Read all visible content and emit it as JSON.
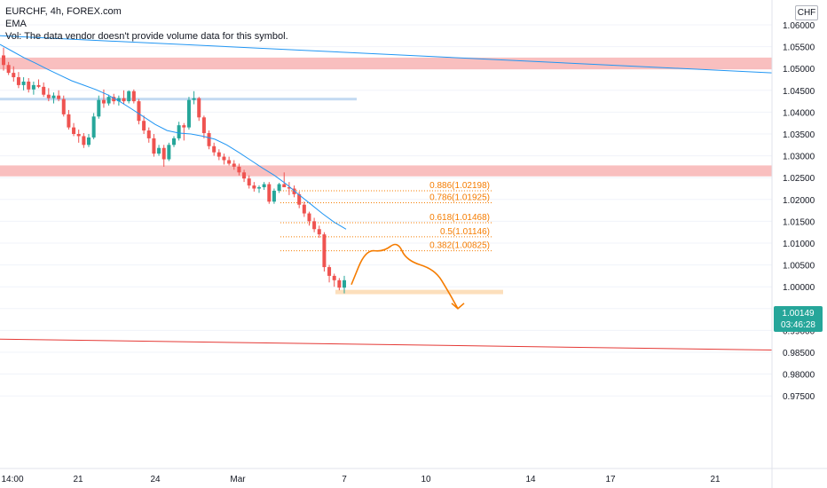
{
  "legend": {
    "symbol_line": "EURCHF, 4h, FOREX.com",
    "ema_label": "EMA",
    "vol_note": "Vol: The data vendor doesn't provide volume data for this symbol."
  },
  "currency_badge": "CHF",
  "last_price": {
    "value": "1.00149",
    "countdown": "03:46:28"
  },
  "colors": {
    "up": "#26a69a",
    "down": "#ef5350",
    "ema": "#2196f3",
    "zone_red": "#f8b4b4",
    "zone_blue": "#b8d3f0",
    "zone_orange": "#fcd9b0",
    "fib": "#f57c00",
    "trend_red": "#e53935",
    "trend_blue": "#2196f3"
  },
  "chart_data": {
    "type": "candlestick",
    "symbol": "EURCHF",
    "timeframe": "4h",
    "ylim": [
      0.9725,
      1.0625
    ],
    "y_ticks": [
      "1.06000",
      "1.05500",
      "1.05000",
      "1.04500",
      "1.04000",
      "1.03500",
      "1.03000",
      "1.02500",
      "1.02000",
      "1.01500",
      "1.01000",
      "1.00500",
      "1.00000",
      "0.99500",
      "0.99000",
      "0.98500",
      "0.98000",
      "0.97500"
    ],
    "x_ticks": [
      "14:00",
      "21",
      "24",
      "Mar",
      "7",
      "10",
      "14",
      "17",
      "21"
    ],
    "candles": [
      [
        1.053,
        1.0548,
        1.0495,
        1.0508
      ],
      [
        1.0508,
        1.0515,
        1.0485,
        1.049
      ],
      [
        1.049,
        1.0505,
        1.047,
        1.048
      ],
      [
        1.048,
        1.0492,
        1.0455,
        1.0462
      ],
      [
        1.0462,
        1.048,
        1.045,
        1.047
      ],
      [
        1.047,
        1.0478,
        1.0445,
        1.0452
      ],
      [
        1.0452,
        1.047,
        1.044,
        1.0462
      ],
      [
        1.0462,
        1.0475,
        1.0455,
        1.0458
      ],
      [
        1.0458,
        1.0468,
        1.0435,
        1.044
      ],
      [
        1.044,
        1.0455,
        1.0425,
        1.0432
      ],
      [
        1.0432,
        1.0445,
        1.042,
        1.0438
      ],
      [
        1.0438,
        1.045,
        1.0425,
        1.043
      ],
      [
        1.043,
        1.0438,
        1.039,
        1.0395
      ],
      [
        1.0395,
        1.0405,
        1.036,
        1.0365
      ],
      [
        1.0365,
        1.0375,
        1.0345,
        1.035
      ],
      [
        1.035,
        1.036,
        1.033,
        1.0345
      ],
      [
        1.0345,
        1.0352,
        1.0318,
        1.0325
      ],
      [
        1.0325,
        1.035,
        1.032,
        1.0342
      ],
      [
        1.0342,
        1.0398,
        1.0338,
        1.039
      ],
      [
        1.039,
        1.0438,
        1.0385,
        1.0428
      ],
      [
        1.0428,
        1.0452,
        1.041,
        1.042
      ],
      [
        1.042,
        1.044,
        1.0415,
        1.0435
      ],
      [
        1.0435,
        1.0442,
        1.0418,
        1.0425
      ],
      [
        1.0425,
        1.0438,
        1.0415,
        1.0432
      ],
      [
        1.0432,
        1.045,
        1.0418,
        1.0425
      ],
      [
        1.0425,
        1.045,
        1.042,
        1.0448
      ],
      [
        1.0448,
        1.0452,
        1.042,
        1.0425
      ],
      [
        1.0425,
        1.043,
        1.0372,
        1.038
      ],
      [
        1.038,
        1.0392,
        1.035,
        1.0358
      ],
      [
        1.0358,
        1.0365,
        1.033,
        1.034
      ],
      [
        1.034,
        1.035,
        1.0298,
        1.0305
      ],
      [
        1.0305,
        1.0325,
        1.03,
        1.0318
      ],
      [
        1.0318,
        1.0325,
        1.0275,
        1.0292
      ],
      [
        1.0292,
        1.033,
        1.0288,
        1.0325
      ],
      [
        1.0325,
        1.0345,
        1.032,
        1.034
      ],
      [
        1.034,
        1.0378,
        1.0335,
        1.037
      ],
      [
        1.037,
        1.0375,
        1.0335,
        1.0365
      ],
      [
        1.0365,
        1.0435,
        1.036,
        1.0428
      ],
      [
        1.0428,
        1.0448,
        1.0418,
        1.0432
      ],
      [
        1.0432,
        1.0435,
        1.038,
        1.0388
      ],
      [
        1.0388,
        1.0392,
        1.034,
        1.0352
      ],
      [
        1.0352,
        1.0358,
        1.0315,
        1.0322
      ],
      [
        1.0322,
        1.033,
        1.03,
        1.0308
      ],
      [
        1.0308,
        1.0315,
        1.029,
        1.0298
      ],
      [
        1.0298,
        1.0305,
        1.028,
        1.029
      ],
      [
        1.029,
        1.0298,
        1.0278,
        1.0282
      ],
      [
        1.0282,
        1.029,
        1.0268,
        1.0275
      ],
      [
        1.0275,
        1.0282,
        1.0255,
        1.0262
      ],
      [
        1.0262,
        1.0268,
        1.024,
        1.0248
      ],
      [
        1.0248,
        1.0255,
        1.0225,
        1.0232
      ],
      [
        1.0232,
        1.024,
        1.0218,
        1.0225
      ],
      [
        1.0225,
        1.0232,
        1.0215,
        1.0228
      ],
      [
        1.0228,
        1.024,
        1.0222,
        1.0235
      ],
      [
        1.0235,
        1.024,
        1.019,
        1.0195
      ],
      [
        1.0195,
        1.0225,
        1.019,
        1.022
      ],
      [
        1.022,
        1.0238,
        1.0215,
        1.0235
      ],
      [
        1.0235,
        1.0262,
        1.023,
        1.0228
      ],
      [
        1.0228,
        1.024,
        1.021,
        1.0225
      ],
      [
        1.0225,
        1.0232,
        1.0205,
        1.0212
      ],
      [
        1.0212,
        1.0218,
        1.018,
        1.0188
      ],
      [
        1.0188,
        1.0195,
        1.016,
        1.0168
      ],
      [
        1.0168,
        1.0172,
        1.014,
        1.015
      ],
      [
        1.015,
        1.0158,
        1.0125,
        1.0132
      ],
      [
        1.0132,
        1.014,
        1.0112,
        1.012
      ],
      [
        1.012,
        1.0125,
        1.0035,
        1.0045
      ],
      [
        1.0045,
        1.005,
        1.001,
        1.0025
      ],
      [
        1.0025,
        1.003,
        1.0,
        1.0015
      ],
      [
        1.0015,
        1.002,
        0.9992,
        0.9998
      ],
      [
        0.9998,
        1.0025,
        0.9985,
        1.0015
      ]
    ],
    "ema": [
      1.0555,
      1.054,
      1.0525,
      1.0512,
      1.0498,
      1.0485,
      1.0472,
      1.0462,
      1.0452,
      1.044,
      1.0425,
      1.0408,
      1.039,
      1.0372,
      1.0358,
      1.0352,
      1.035,
      1.0345,
      1.0338,
      1.0325,
      1.0308,
      1.029,
      1.0272,
      1.0255,
      1.0235,
      1.0212,
      1.019,
      1.0168,
      1.0148,
      1.0132
    ],
    "zones": [
      {
        "from": 1.0498,
        "to": 1.0525,
        "color": "zone_red"
      },
      {
        "from": 1.0253,
        "to": 1.0278,
        "color": "zone_red"
      },
      {
        "from": 1.0427,
        "to": 1.0433,
        "color": "zone_blue"
      },
      {
        "from": 0.9983,
        "to": 0.9993,
        "color": "zone_orange"
      }
    ],
    "fib_levels": [
      {
        "ratio": "0.886",
        "price": 1.02198,
        "label": "0.886(1.02198)"
      },
      {
        "ratio": "0.786",
        "price": 1.01925,
        "label": "0.786(1.01925)"
      },
      {
        "ratio": "0.618",
        "price": 1.01468,
        "label": "0.618(1.01468)"
      },
      {
        "ratio": "0.5",
        "price": 1.01146,
        "label": "0.5(1.01146)"
      },
      {
        "ratio": "0.382",
        "price": 1.00825,
        "label": "0.382(1.00825)"
      }
    ],
    "trendlines": [
      {
        "color": "trend_blue",
        "from": [
          0,
          1.0575
        ],
        "to": [
          1,
          1.049
        ]
      },
      {
        "color": "trend_red",
        "from": [
          0,
          0.988
        ],
        "to": [
          1,
          0.9855
        ]
      }
    ],
    "projection_path": [
      1.0005,
      1.0085,
      1.008,
      1.0105,
      1.006,
      1.004,
      0.999,
      0.995
    ]
  }
}
